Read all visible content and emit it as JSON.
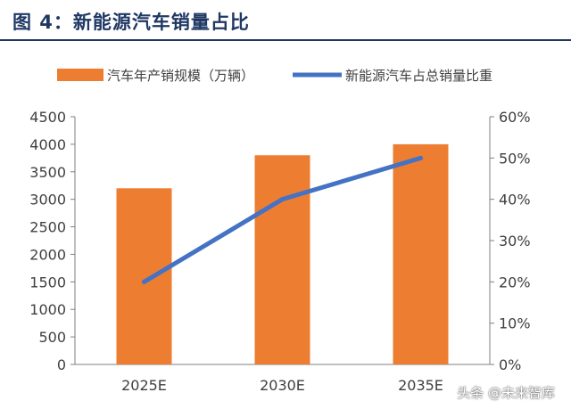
{
  "figure": {
    "title": "图 4：新能源汽车销量占比"
  },
  "chart_data": {
    "type": "bar",
    "categories": [
      "2025E",
      "2030E",
      "2035E"
    ],
    "series": [
      {
        "name": "汽车年产销规模（万辆）",
        "type": "bar",
        "axis": "left",
        "values": [
          3200,
          3800,
          4000
        ],
        "color": "#ed7d31"
      },
      {
        "name": "新能源汽车占总销量比重",
        "type": "line",
        "axis": "right",
        "values": [
          0.2,
          0.4,
          0.5
        ],
        "color": "#4472c4"
      }
    ],
    "y_left": {
      "ylim": [
        0,
        4500
      ],
      "ticks": [
        "0",
        "500",
        "1000",
        "1500",
        "2000",
        "2500",
        "3000",
        "3500",
        "4000",
        "4500"
      ]
    },
    "y_right": {
      "ylim": [
        0,
        0.6
      ],
      "ticks": [
        "0%",
        "10%",
        "20%",
        "30%",
        "40%",
        "50%",
        "60%"
      ]
    },
    "legend_position": "top",
    "grid": false
  },
  "watermark": "头条 @未来智库"
}
